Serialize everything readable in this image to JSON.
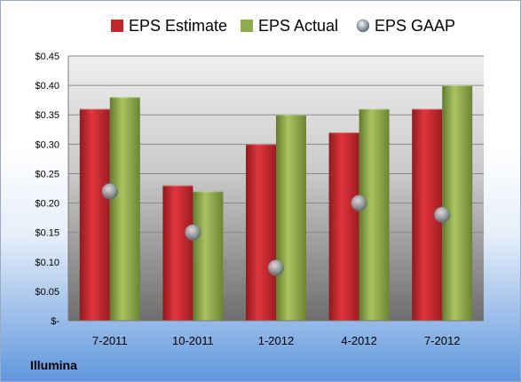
{
  "footer": {
    "company": "Illumina"
  },
  "colors": {
    "estimate": "#c0272d",
    "actual": "#8eab4e",
    "gaap": "#9aa3ad",
    "plot_bg_top": "#f2f2f2",
    "plot_bg_bottom": "#707070"
  },
  "chart_data": {
    "type": "bar",
    "title": "",
    "xlabel": "",
    "ylabel": "",
    "categories": [
      "7-2011",
      "10-2011",
      "1-2012",
      "4-2012",
      "7-2012"
    ],
    "series": [
      {
        "name": "EPS Estimate",
        "kind": "bar",
        "color": "#c0272d",
        "values": [
          0.36,
          0.23,
          0.3,
          0.32,
          0.36
        ]
      },
      {
        "name": "EPS Actual",
        "kind": "bar",
        "color": "#8eab4e",
        "values": [
          0.38,
          0.22,
          0.35,
          0.36,
          0.4
        ]
      },
      {
        "name": "EPS GAAP",
        "kind": "point",
        "color": "#9aa3ad",
        "values": [
          0.22,
          0.15,
          0.09,
          0.2,
          0.18
        ]
      }
    ],
    "ylim": [
      0,
      0.45
    ],
    "yticks": [
      0,
      0.05,
      0.1,
      0.15,
      0.2,
      0.25,
      0.3,
      0.35,
      0.4,
      0.45
    ],
    "ytick_labels": [
      "$-",
      "$0.05",
      "$0.10",
      "$0.15",
      "$0.20",
      "$0.25",
      "$0.30",
      "$0.35",
      "$0.40",
      "$0.45"
    ],
    "grid": true,
    "legend": "top"
  }
}
